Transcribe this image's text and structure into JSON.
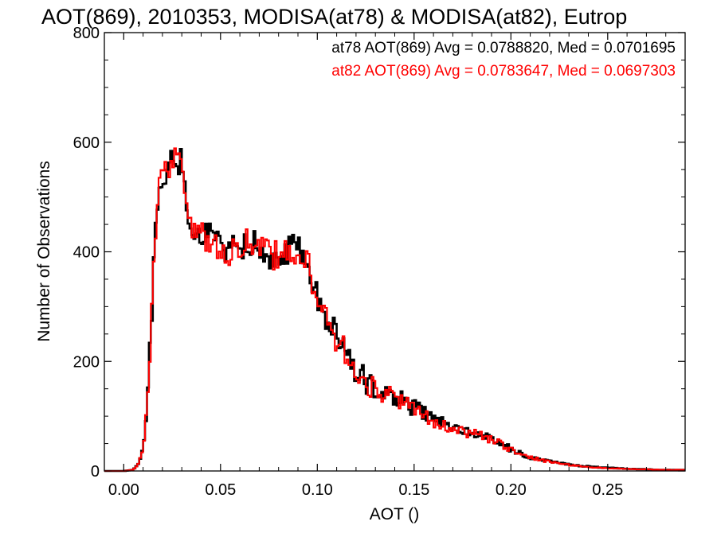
{
  "chart_data": {
    "type": "line",
    "title": "AOT(869), 2010353, MODISA(at78) & MODISA(at82), Eutrop",
    "xlabel": "AOT ()",
    "ylabel": "Number of Observations",
    "xlim": [
      -0.01,
      0.29
    ],
    "ylim": [
      0,
      800
    ],
    "x_ticks": [
      "0.00",
      "0.05",
      "0.10",
      "0.15",
      "0.20",
      "0.25"
    ],
    "y_ticks": [
      "0",
      "200",
      "400",
      "600",
      "800"
    ],
    "grid": false,
    "legend_position": "top-right",
    "bin_width": 0.001,
    "series": [
      {
        "name": "at78",
        "color": "#000000",
        "stats_text": "at78 AOT(869) Avg = 0.0788820, Med = 0.0701695",
        "anchors": [
          [
            -0.01,
            0
          ],
          [
            0.0,
            0
          ],
          [
            0.005,
            2
          ],
          [
            0.008,
            15
          ],
          [
            0.01,
            40
          ],
          [
            0.012,
            110
          ],
          [
            0.014,
            250
          ],
          [
            0.016,
            420
          ],
          [
            0.018,
            500
          ],
          [
            0.02,
            540
          ],
          [
            0.024,
            555
          ],
          [
            0.028,
            570
          ],
          [
            0.031,
            550
          ],
          [
            0.033,
            470
          ],
          [
            0.036,
            450
          ],
          [
            0.04,
            435
          ],
          [
            0.045,
            430
          ],
          [
            0.05,
            410
          ],
          [
            0.055,
            400
          ],
          [
            0.06,
            410
          ],
          [
            0.065,
            420
          ],
          [
            0.07,
            400
          ],
          [
            0.075,
            395
          ],
          [
            0.08,
            400
          ],
          [
            0.085,
            405
          ],
          [
            0.09,
            410
          ],
          [
            0.095,
            380
          ],
          [
            0.1,
            320
          ],
          [
            0.105,
            280
          ],
          [
            0.11,
            245
          ],
          [
            0.115,
            210
          ],
          [
            0.12,
            180
          ],
          [
            0.125,
            165
          ],
          [
            0.13,
            150
          ],
          [
            0.14,
            135
          ],
          [
            0.15,
            115
          ],
          [
            0.16,
            95
          ],
          [
            0.17,
            80
          ],
          [
            0.18,
            70
          ],
          [
            0.19,
            60
          ],
          [
            0.2,
            40
          ],
          [
            0.21,
            25
          ],
          [
            0.22,
            18
          ],
          [
            0.23,
            12
          ],
          [
            0.24,
            8
          ],
          [
            0.25,
            6
          ],
          [
            0.26,
            4
          ],
          [
            0.27,
            3
          ],
          [
            0.28,
            2
          ],
          [
            0.29,
            2
          ]
        ],
        "noise_amplitude": 28,
        "seed": 78
      },
      {
        "name": "at82",
        "color": "#ff0000",
        "stats_text": "at82 AOT(869) Avg = 0.0783647, Med = 0.0697303",
        "anchors": [
          [
            -0.01,
            0
          ],
          [
            0.0,
            0
          ],
          [
            0.005,
            2
          ],
          [
            0.008,
            15
          ],
          [
            0.01,
            42
          ],
          [
            0.012,
            115
          ],
          [
            0.014,
            255
          ],
          [
            0.016,
            425
          ],
          [
            0.018,
            505
          ],
          [
            0.02,
            545
          ],
          [
            0.024,
            560
          ],
          [
            0.028,
            575
          ],
          [
            0.031,
            555
          ],
          [
            0.033,
            468
          ],
          [
            0.036,
            445
          ],
          [
            0.04,
            430
          ],
          [
            0.045,
            425
          ],
          [
            0.05,
            405
          ],
          [
            0.055,
            398
          ],
          [
            0.06,
            412
          ],
          [
            0.065,
            425
          ],
          [
            0.07,
            402
          ],
          [
            0.075,
            392
          ],
          [
            0.08,
            398
          ],
          [
            0.085,
            400
          ],
          [
            0.09,
            405
          ],
          [
            0.095,
            378
          ],
          [
            0.1,
            318
          ],
          [
            0.105,
            278
          ],
          [
            0.11,
            243
          ],
          [
            0.115,
            208
          ],
          [
            0.12,
            178
          ],
          [
            0.125,
            163
          ],
          [
            0.13,
            148
          ],
          [
            0.14,
            132
          ],
          [
            0.15,
            112
          ],
          [
            0.16,
            92
          ],
          [
            0.17,
            78
          ],
          [
            0.18,
            68
          ],
          [
            0.19,
            58
          ],
          [
            0.2,
            38
          ],
          [
            0.21,
            24
          ],
          [
            0.22,
            17
          ],
          [
            0.23,
            11
          ],
          [
            0.24,
            7
          ],
          [
            0.25,
            5
          ],
          [
            0.26,
            4
          ],
          [
            0.27,
            3
          ],
          [
            0.28,
            2
          ],
          [
            0.29,
            2
          ]
        ],
        "noise_amplitude": 28,
        "seed": 82
      }
    ]
  }
}
